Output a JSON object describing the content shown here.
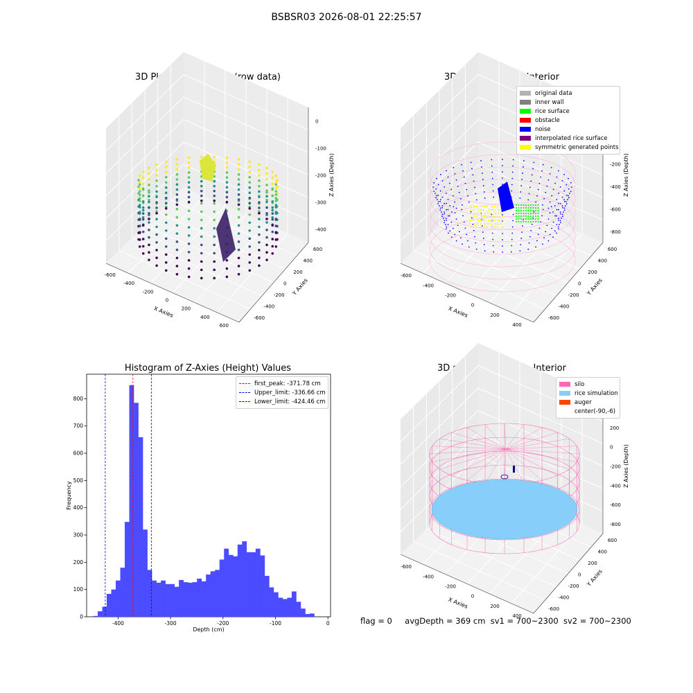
{
  "figure": {
    "suptitle": "BSBSR03 2026-08-01 22:25:57",
    "status_line": {
      "flag": "flag = 0",
      "avg_depth": "avgDepth = 369 cm",
      "sv1": "sv1 = 700~2300",
      "sv2": "sv2 = 700~2300"
    }
  },
  "colors": {
    "hist_bar": "#4b4bff",
    "peak_line": "#ff0000",
    "limit_line": "#0000ff",
    "silo": "#ff69b4",
    "rice_simulation": "#87cefa",
    "auger": "#ff4500",
    "original_data": "#b3b3b3",
    "inner_wall": "#808080",
    "rice_surface": "#00ff00",
    "obstacle": "#ff0000",
    "noise": "#0000ff",
    "interpolated_rice_surface": "#800080",
    "symmetric_generated_points": "#ffff00"
  },
  "chart_data": [
    {
      "type": "scatter",
      "title": "3D Plot of Silo Interior(row data)",
      "xlabel": "X Axies",
      "ylabel": "Y Axies",
      "zlabel": "Z Axies (Depth)",
      "xticks": [
        "-600",
        "-400",
        "-200",
        "0",
        "200",
        "400",
        "600"
      ],
      "yticks": [
        "-600",
        "-400",
        "-200",
        "0",
        "200",
        "400",
        "600"
      ],
      "zticks": [
        "0",
        "-100",
        "-200",
        "-300",
        "-400"
      ],
      "xlim": [
        -700,
        650
      ],
      "ylim": [
        -650,
        650
      ],
      "zlim": [
        -470,
        10
      ],
      "colormap": "viridis"
    },
    {
      "type": "scatter",
      "title": "3D classify of Silo Interior",
      "xlabel": "X Axies",
      "ylabel": "Y Axies",
      "zlabel": "Z Axies (Depth)",
      "xticks": [
        "-600",
        "-400",
        "-200",
        "0",
        "200",
        "400"
      ],
      "yticks": [
        "-600",
        "-400",
        "-200",
        "0",
        "200",
        "400",
        "600"
      ],
      "zticks": [
        "200",
        "0",
        "-200",
        "-400",
        "-600",
        "-800"
      ],
      "xlim": [
        -700,
        550
      ],
      "ylim": [
        -650,
        650
      ],
      "zlim": [
        -900,
        300
      ],
      "legend_position": "top-right",
      "legend": [
        {
          "label": "original data",
          "color": "#b3b3b3"
        },
        {
          "label": "inner wall",
          "color": "#808080"
        },
        {
          "label": "rice surface",
          "color": "#00ff00"
        },
        {
          "label": "obstacle",
          "color": "#ff0000"
        },
        {
          "label": "noise",
          "color": "#0000ff"
        },
        {
          "label": "interpolated rice surface",
          "color": "#800080"
        },
        {
          "label": "symmetric generated points",
          "color": "#ffff00"
        }
      ]
    },
    {
      "type": "bar",
      "title": "Histogram of Z-Axies (Height) Values",
      "xlabel": "Depth (cm)",
      "ylabel": "Frequency",
      "xlim": [
        -460,
        5
      ],
      "ylim": [
        0,
        890
      ],
      "xticks": [
        -400,
        -300,
        -200,
        -100,
        0
      ],
      "yticks": [
        0,
        100,
        200,
        300,
        400,
        500,
        600,
        700,
        800
      ],
      "grid": false,
      "bin_start": -447.5,
      "bin_width": 8.6,
      "values": [
        3,
        20,
        37,
        84,
        100,
        133,
        180,
        348,
        850,
        785,
        659,
        320,
        172,
        133,
        125,
        133,
        120,
        120,
        110,
        135,
        127,
        125,
        127,
        140,
        130,
        155,
        167,
        172,
        210,
        250,
        227,
        222,
        265,
        277,
        237,
        237,
        250,
        225,
        150,
        108,
        90,
        70,
        65,
        70,
        93,
        55,
        30,
        10,
        12
      ],
      "vlines": [
        {
          "x": -371.78,
          "label": "first_peak: -371.78 cm",
          "color": "#ff0000"
        },
        {
          "x": -336.66,
          "label": "Upper_limit: -336.66 cm",
          "color": "#0000ff"
        },
        {
          "x": -424.46,
          "label": "Lower_limit: -424.46 cm",
          "color": "#0000ff"
        }
      ],
      "legend_position": "top-right"
    },
    {
      "type": "scatter",
      "title": "3D simulation of Silo Interior",
      "xlabel": "X Axies",
      "ylabel": "Y Axies",
      "zlabel": "Z Axies (Depth)",
      "xticks": [
        "-600",
        "-400",
        "-200",
        "0",
        "200",
        "400"
      ],
      "yticks": [
        "-600",
        "-400",
        "-200",
        "0",
        "200",
        "400",
        "600"
      ],
      "zticks": [
        "400",
        "200",
        "0",
        "-200",
        "-400",
        "-600",
        "-800"
      ],
      "xlim": [
        -700,
        550
      ],
      "ylim": [
        -650,
        650
      ],
      "zlim": [
        -900,
        450
      ],
      "legend_position": "top-right",
      "legend": [
        {
          "label": "silo",
          "color": "#ff69b4"
        },
        {
          "label": "rice simulation",
          "color": "#87cefa"
        },
        {
          "label": "auger",
          "color": "#ff4500"
        },
        {
          "label": "center(-90,-6)",
          "color": ""
        }
      ]
    }
  ]
}
